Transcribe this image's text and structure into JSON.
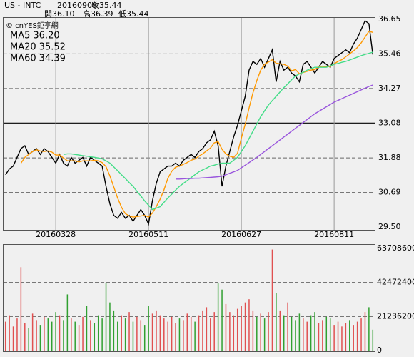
{
  "header": {
    "symbol": "US - INTC",
    "date": "20160909",
    "close": "收35.44",
    "open": "開36.10",
    "high": "高36.39",
    "low": "低35.44",
    "source": "© cnYES鉅亨網"
  },
  "chart_data": [
    {
      "type": "line",
      "categories": [
        null,
        null,
        null,
        null,
        null,
        null,
        null,
        null,
        null,
        null,
        null,
        null,
        null,
        "20160328",
        null,
        null,
        null,
        null,
        null,
        null,
        null,
        null,
        null,
        null,
        null,
        null,
        null,
        null,
        null,
        null,
        null,
        null,
        null,
        null,
        null,
        null,
        null,
        "20160511",
        null,
        null,
        null,
        null,
        null,
        null,
        null,
        null,
        null,
        null,
        null,
        null,
        null,
        null,
        null,
        null,
        null,
        null,
        null,
        null,
        null,
        null,
        null,
        "20160627",
        null,
        null,
        null,
        null,
        null,
        null,
        null,
        null,
        null,
        null,
        null,
        null,
        null,
        null,
        null,
        null,
        null,
        null,
        null,
        null,
        null,
        null,
        null,
        "20160811",
        null,
        null,
        null,
        null,
        null,
        null,
        null,
        null,
        null,
        null
      ],
      "series": [
        {
          "name": "",
          "color": "#000000",
          "values": [
            31.3,
            31.5,
            31.6,
            31.9,
            32.2,
            32.3,
            32.0,
            32.1,
            32.2,
            32.0,
            32.2,
            32.1,
            31.9,
            31.7,
            32.0,
            31.7,
            31.6,
            31.9,
            31.7,
            31.8,
            31.9,
            31.6,
            31.9,
            31.8,
            31.7,
            31.6,
            30.9,
            30.3,
            29.9,
            29.8,
            30.0,
            29.8,
            29.9,
            29.7,
            29.9,
            30.1,
            29.9,
            29.6,
            30.4,
            31.0,
            31.4,
            31.5,
            31.6,
            31.6,
            31.7,
            31.6,
            31.8,
            31.9,
            32.0,
            31.9,
            32.1,
            32.2,
            32.4,
            32.5,
            32.8,
            32.3,
            30.9,
            31.6,
            32.1,
            32.6,
            33.0,
            33.5,
            34.0,
            34.9,
            35.2,
            35.1,
            35.3,
            35.0,
            35.3,
            35.6,
            34.5,
            35.2,
            34.9,
            35.0,
            34.8,
            34.7,
            34.5,
            35.1,
            35.2,
            35.0,
            34.8,
            35.0,
            35.2,
            35.1,
            35.0,
            35.3,
            35.4,
            35.5,
            35.6,
            35.5,
            35.8,
            36.0,
            36.3,
            36.6,
            36.5,
            35.44
          ]
        },
        {
          "name": "MA5",
          "legend_label": "36.20",
          "color": "#ff9900",
          "values": [
            null,
            null,
            null,
            null,
            31.7,
            31.9,
            32.0,
            32.1,
            32.16,
            32.12,
            32.1,
            32.12,
            32.08,
            31.98,
            31.98,
            31.88,
            31.78,
            31.78,
            31.78,
            31.74,
            31.78,
            31.78,
            31.78,
            31.8,
            31.78,
            31.72,
            31.58,
            31.26,
            30.88,
            30.5,
            30.18,
            29.96,
            29.88,
            29.84,
            29.86,
            29.88,
            29.9,
            29.84,
            29.98,
            30.2,
            30.46,
            30.78,
            31.18,
            31.42,
            31.56,
            31.6,
            31.66,
            31.72,
            31.8,
            31.84,
            31.94,
            32.02,
            32.12,
            32.22,
            32.4,
            32.44,
            32.18,
            32.02,
            31.94,
            31.9,
            32.04,
            32.56,
            33.04,
            33.6,
            34.12,
            34.54,
            34.9,
            35.1,
            35.18,
            35.26,
            35.14,
            35.12,
            35.1,
            35.04,
            34.88,
            34.92,
            34.78,
            34.82,
            34.86,
            34.9,
            34.92,
            35.02,
            35.04,
            35.02,
            35.02,
            35.12,
            35.2,
            35.26,
            35.36,
            35.46,
            35.56,
            35.68,
            35.84,
            36.04,
            36.24,
            36.2
          ]
        },
        {
          "name": "MA20",
          "legend_label": "35.52",
          "color": "#44dd88",
          "values": [
            null,
            null,
            null,
            null,
            null,
            null,
            null,
            null,
            null,
            null,
            null,
            null,
            null,
            null,
            null,
            32.0,
            32.02,
            32.02,
            32.0,
            31.98,
            31.96,
            31.94,
            31.92,
            31.9,
            31.88,
            31.85,
            31.78,
            31.7,
            31.57,
            31.44,
            31.3,
            31.17,
            31.03,
            30.9,
            30.73,
            30.57,
            30.4,
            30.25,
            30.1,
            30.15,
            30.2,
            30.35,
            30.5,
            30.63,
            30.77,
            30.9,
            31.0,
            31.1,
            31.2,
            31.3,
            31.4,
            31.47,
            31.53,
            31.6,
            31.63,
            31.67,
            31.7,
            31.7,
            31.7,
            31.8,
            31.9,
            32.1,
            32.3,
            32.55,
            32.8,
            33.05,
            33.3,
            33.5,
            33.7,
            33.85,
            34.0,
            34.15,
            34.3,
            34.43,
            34.57,
            34.7,
            34.77,
            34.83,
            34.9,
            34.95,
            35.0,
            35.0,
            35.0,
            35.0,
            35.05,
            35.1,
            35.13,
            35.17,
            35.2,
            35.25,
            35.3,
            35.35,
            35.4,
            35.44,
            35.48,
            35.52
          ]
        },
        {
          "name": "MA60",
          "legend_label": "34.39",
          "color": "#9955dd",
          "values": [
            null,
            null,
            null,
            null,
            null,
            null,
            null,
            null,
            null,
            null,
            null,
            null,
            null,
            null,
            null,
            null,
            null,
            null,
            null,
            null,
            null,
            null,
            null,
            null,
            null,
            null,
            null,
            null,
            null,
            null,
            null,
            null,
            null,
            null,
            null,
            null,
            null,
            null,
            null,
            null,
            null,
            null,
            null,
            null,
            31.15,
            31.15,
            31.16,
            31.17,
            31.17,
            31.18,
            31.18,
            31.19,
            31.2,
            31.21,
            31.22,
            31.23,
            31.25,
            31.3,
            31.35,
            31.4,
            31.45,
            31.54,
            31.63,
            31.72,
            31.81,
            31.9,
            32.0,
            32.1,
            32.2,
            32.3,
            32.4,
            32.5,
            32.6,
            32.7,
            32.8,
            32.9,
            33.0,
            33.1,
            33.2,
            33.3,
            33.4,
            33.48,
            33.56,
            33.64,
            33.72,
            33.8,
            33.86,
            33.92,
            33.98,
            34.04,
            34.1,
            34.16,
            34.22,
            34.28,
            34.34,
            34.39
          ]
        }
      ],
      "ylim": [
        29.5,
        36.65
      ],
      "yticks": [
        36.65,
        35.46,
        34.27,
        33.08,
        31.88,
        30.69,
        {
          "value": 29.5,
          "label": "29.50"
        }
      ],
      "midline": true,
      "grid": true
    },
    {
      "type": "bar",
      "up_color": "#e05050",
      "down_color": "#30a030",
      "values": [
        18000000,
        22000000,
        15000000,
        20000000,
        52000000,
        17000000,
        14000000,
        23000000,
        19000000,
        16000000,
        21000000,
        20000000,
        18000000,
        24000000,
        22000000,
        19000000,
        35000000,
        20000000,
        18000000,
        16000000,
        21000000,
        28000000,
        19000000,
        17000000,
        22000000,
        20000000,
        42000000,
        30000000,
        25000000,
        18000000,
        22000000,
        20000000,
        24000000,
        18000000,
        21000000,
        19000000,
        16000000,
        28000000,
        23000000,
        25000000,
        22000000,
        20000000,
        18000000,
        21000000,
        17000000,
        20000000,
        19000000,
        23000000,
        21000000,
        18000000,
        22000000,
        25000000,
        27000000,
        20000000,
        24000000,
        42000000,
        38000000,
        29000000,
        24000000,
        22000000,
        26000000,
        28000000,
        30000000,
        32000000,
        25000000,
        21000000,
        23000000,
        20000000,
        24000000,
        63000000,
        36000000,
        25000000,
        22000000,
        30000000,
        21000000,
        19000000,
        23000000,
        20000000,
        18000000,
        22000000,
        24000000,
        17000000,
        19000000,
        21000000,
        20000000,
        16000000,
        18000000,
        15000000,
        17000000,
        19000000,
        16000000,
        18000000,
        20000000,
        24000000,
        27000000,
        13000000
      ],
      "ylim": [
        0,
        63708600
      ],
      "yticks": [
        63708600,
        42472400,
        21236200,
        0
      ],
      "grid": true
    }
  ]
}
